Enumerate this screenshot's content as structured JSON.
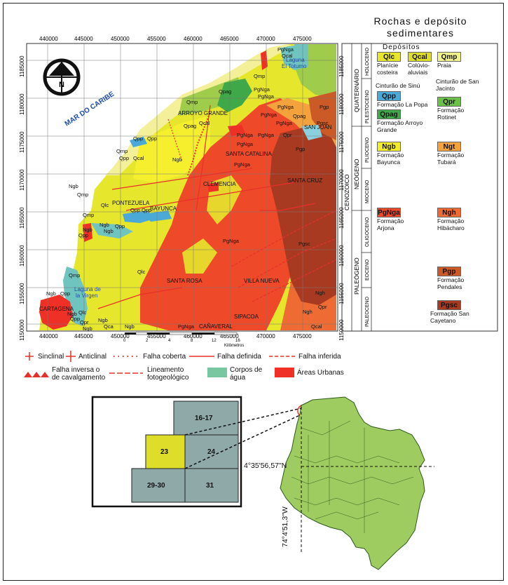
{
  "map": {
    "xticks": [
      "440000",
      "445000",
      "450000",
      "455000",
      "460000",
      "465000",
      "470000",
      "475000"
    ],
    "yticks": [
      "1185000",
      "1180000",
      "1175000",
      "1170000",
      "1165000",
      "1160000",
      "1155000",
      "1150000"
    ],
    "north_label": "N",
    "sea_label": "MAR DO CARIBE",
    "lagoon1": "Laguna El Totumo",
    "lagoon2": "Laguna de la Virgen",
    "places": [
      "ARROYO GRANDE",
      "SANTA CATALINA",
      "CLEMENCIA",
      "SANTA CRUZ",
      "PONTEZUELA",
      "BAYUNCA",
      "SANTA ROSA",
      "VILLA NUEVA",
      "CARTAGENA",
      "SIPACOA",
      "CAÑAVERAL",
      "SAN JUAN"
    ],
    "unit_labels": [
      "Qmp",
      "Qcal",
      "Qlc",
      "Qpag",
      "Qpp",
      "Qpr",
      "Ngb",
      "Ngt",
      "PgNga",
      "Ngh",
      "Pgp",
      "Pgsc"
    ],
    "scale": {
      "ticks": [
        "0",
        "2",
        "4",
        "8",
        "12",
        "16"
      ],
      "unit": "Kilômetros"
    }
  },
  "legend": {
    "title_line1": "Rochas e depósito",
    "title_line2": "sedimentares",
    "depositos": "Depósitos",
    "eras": {
      "cenozoico": "CENOZOICO",
      "quaternario": "QUATERNÁRIO",
      "neogeno": "NEÓGENO",
      "paleogeno": "PALEÓGENO"
    },
    "epochs": {
      "holoceno": "HOLOCENO",
      "plestoceno": "PLESTOCENO",
      "plioceno": "PLIOCENO",
      "mioceno": "MIOCENO",
      "oligoceno": "OLIGOCENO",
      "eoceno": "EOCENO",
      "paleoceno": "PALEOCENO"
    },
    "items": {
      "qlc": {
        "code": "Qlc",
        "text": "Planície costeira",
        "color": "#e6e62c"
      },
      "qcal": {
        "code": "Qcal",
        "text": "Colúvio-aluviais",
        "color": "#dede2a"
      },
      "qmp": {
        "code": "Qmp",
        "text": "Praia",
        "color": "#f2f28c"
      },
      "qpp": {
        "code": "Qpp",
        "text": "Formação La Popa",
        "color": "#4aa9d6"
      },
      "qpag": {
        "code": "Qpag",
        "text": "Formação Arroyo Grande",
        "color": "#3fa848"
      },
      "qpr": {
        "code": "Qpr",
        "text": "Formação Rotinet",
        "color": "#6cc04a"
      },
      "ngb": {
        "code": "Ngb",
        "text": "Formação Bayunca",
        "color": "#f2ec2a"
      },
      "ngt": {
        "code": "Ngt",
        "text": "Formação Tubará",
        "color": "#f4a23c"
      },
      "pgnga": {
        "code": "PgNga",
        "text": "Formação Arjona",
        "color": "#ee4a2a"
      },
      "ngh": {
        "code": "Ngh",
        "text": "Formação Hibácharo",
        "color": "#ee6c34"
      },
      "pgp": {
        "code": "Pgp",
        "text": "Formação Pendales",
        "color": "#cc5a26"
      },
      "pgsc": {
        "code": "Pgsc",
        "text": "Formação San Cayetano",
        "color": "#a83a22"
      }
    },
    "sinu": "Cinturão de Sinú",
    "sanjacinto": "Cinturão de San Jacinto"
  },
  "symbols": {
    "sinclinal": "Sinclinal",
    "anticlinal": "Anticlinal",
    "falha_coberta": "Falha coberta",
    "falha_definida": "Falha definida",
    "falha_inferida": "Falha inferida",
    "falha_inversa": "Falha inversa o de cavalgamento",
    "lineamento": "Lineamento fotogeológico",
    "corpos": "Corpos de água",
    "urbanas": "Áreas Urbanas"
  },
  "index_grid": {
    "c1617": "16-17",
    "c23": "23",
    "c24": "24",
    "c2930": "29-30",
    "c31": "31"
  },
  "coords": {
    "lat": "4°35'56,57\"N",
    "lon": "74°4'51,3\"W"
  }
}
